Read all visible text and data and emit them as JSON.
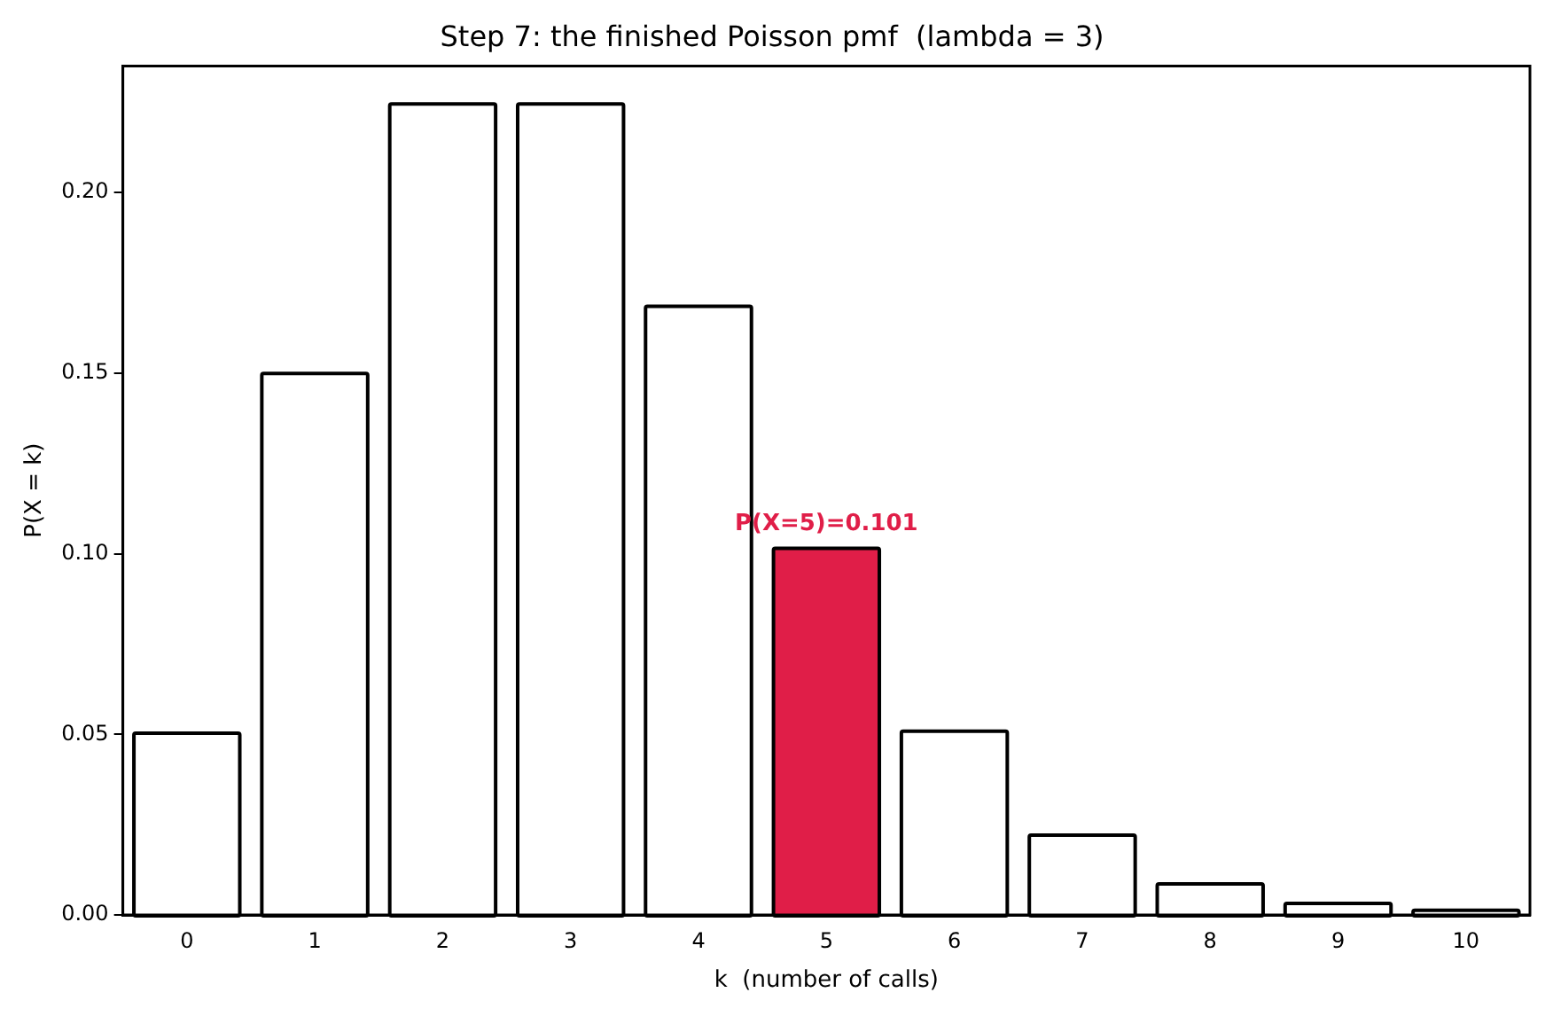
{
  "chart_data": {
    "type": "bar",
    "title": "Step 7: the finished Poisson pmf  (lambda = 3)",
    "xlabel": "k  (number of calls)",
    "ylabel": "P(X = k)",
    "categories": [
      "0",
      "1",
      "2",
      "3",
      "4",
      "5",
      "6",
      "7",
      "8",
      "9",
      "10"
    ],
    "values": [
      0.0498,
      0.1494,
      0.224,
      0.224,
      0.168,
      0.101,
      0.0504,
      0.0216,
      0.0081,
      0.0027,
      0.0008
    ],
    "colors": [
      "#ffffff",
      "#ffffff",
      "#ffffff",
      "#ffffff",
      "#ffffff",
      "#e01e48",
      "#ffffff",
      "#ffffff",
      "#ffffff",
      "#ffffff",
      "#ffffff"
    ],
    "ylim": [
      0,
      0.235
    ],
    "yticks": [
      {
        "value": 0,
        "label": "0.00"
      },
      {
        "value": 0.05,
        "label": "0.05"
      },
      {
        "value": 0.1,
        "label": "0.10"
      },
      {
        "value": 0.15,
        "label": "0.15"
      },
      {
        "value": 0.2,
        "label": "0.20"
      }
    ],
    "grid": false,
    "legend": false,
    "annotations": [
      {
        "text": "P(X=5)=0.101",
        "x": "5",
        "y": 0.101
      }
    ]
  }
}
